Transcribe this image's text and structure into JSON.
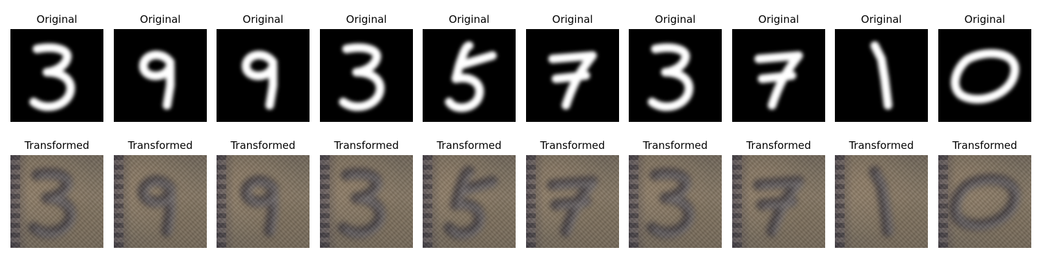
{
  "original_label": "Original",
  "transformed_label": "Transformed",
  "samples": [
    {
      "digit": "3",
      "transformed_digit": "3"
    },
    {
      "digit": "9",
      "transformed_digit": "9"
    },
    {
      "digit": "9",
      "transformed_digit": "9"
    },
    {
      "digit": "3",
      "transformed_digit": "3"
    },
    {
      "digit": "5",
      "transformed_digit": "5"
    },
    {
      "digit": "7",
      "transformed_digit": "7"
    },
    {
      "digit": "3",
      "transformed_digit": "3"
    },
    {
      "digit": "7",
      "transformed_digit": "7"
    },
    {
      "digit": "1",
      "transformed_digit": "1"
    },
    {
      "digit": "0",
      "transformed_digit": "0"
    }
  ]
}
